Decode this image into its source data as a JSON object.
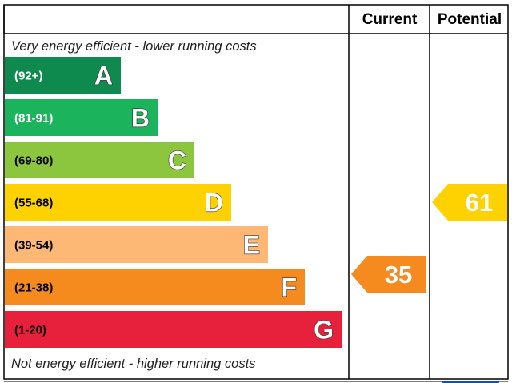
{
  "chart_data": {
    "type": "bar",
    "header": {
      "current": "Current",
      "potential": "Potential"
    },
    "top_note": "Very energy efficient - lower running costs",
    "bottom_note": "Not energy efficient - higher running costs",
    "bands": [
      {
        "letter": "A",
        "range": "(92+)",
        "color": "#0e8a4f",
        "range_color": "#ffffff",
        "letter_fill": "#ffffff"
      },
      {
        "letter": "B",
        "range": "(81-91)",
        "color": "#1bb35c",
        "range_color": "#ffffff",
        "letter_fill": "#ffffff"
      },
      {
        "letter": "C",
        "range": "(69-80)",
        "color": "#8cc63e",
        "range_color": "#000000",
        "letter_fill": "#ffffff"
      },
      {
        "letter": "D",
        "range": "(55-68)",
        "color": "#fed100",
        "range_color": "#000000",
        "letter_fill": "#ffffff"
      },
      {
        "letter": "E",
        "range": "(39-54)",
        "color": "#fcb874",
        "range_color": "#000000",
        "letter_fill": "#ffffff"
      },
      {
        "letter": "F",
        "range": "(21-38)",
        "color": "#f58a1f",
        "range_color": "#000000",
        "letter_fill": "#ffffff"
      },
      {
        "letter": "G",
        "range": "(1-20)",
        "color": "#e7203b",
        "range_color": "#000000",
        "letter_fill": "#ffffff"
      }
    ],
    "current": {
      "value": 35,
      "label": "35",
      "band": "F",
      "color": "#f58a1f"
    },
    "potential": {
      "value": 61,
      "label": "61",
      "band": "D",
      "color": "#fed100"
    }
  }
}
